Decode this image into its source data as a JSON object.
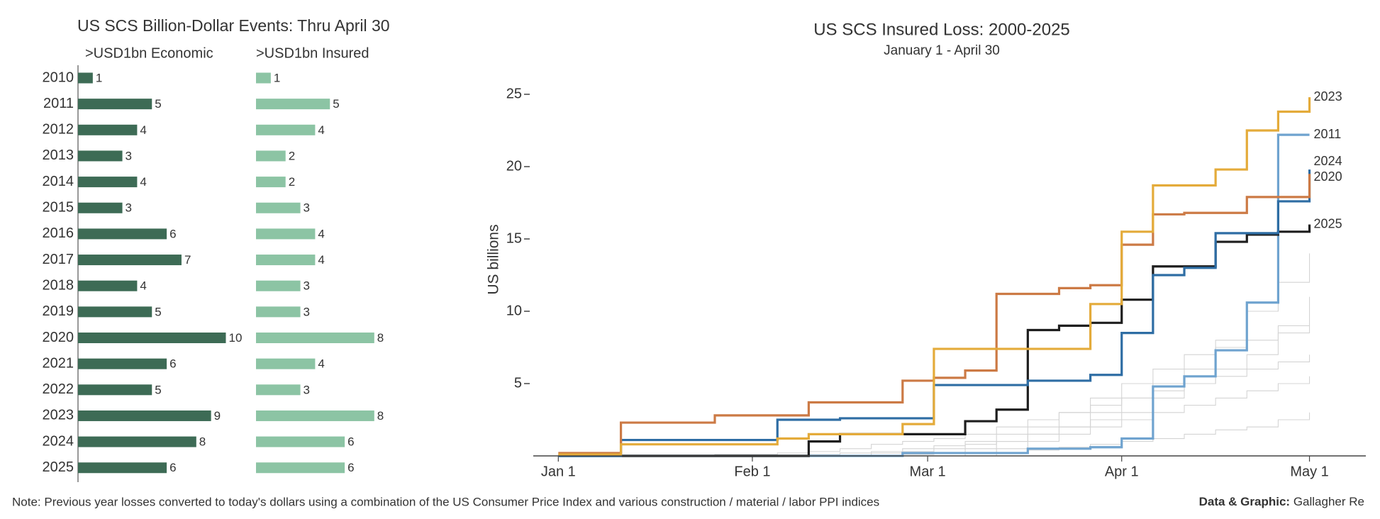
{
  "chart_data": [
    {
      "type": "hbar",
      "title": "US SCS Billion-Dollar Events: Thru April 30",
      "categories": [
        "2010",
        "2011",
        "2012",
        "2013",
        "2014",
        "2015",
        "2016",
        "2017",
        "2018",
        "2019",
        "2020",
        "2021",
        "2022",
        "2023",
        "2024",
        "2025"
      ],
      "xlim": [
        0,
        10
      ],
      "series": [
        {
          "name": ">USD1bn Economic",
          "color": "#3d6b55",
          "values": [
            1,
            5,
            4,
            3,
            4,
            3,
            6,
            7,
            4,
            5,
            10,
            6,
            5,
            9,
            8,
            6
          ]
        },
        {
          "name": ">USD1bn Insured",
          "color": "#8cc4a4",
          "values": [
            1,
            5,
            4,
            2,
            2,
            3,
            4,
            4,
            3,
            3,
            8,
            4,
            3,
            8,
            6,
            6
          ]
        }
      ]
    },
    {
      "type": "step",
      "title": "US SCS Insured Loss: 2000-2025",
      "subtitle": "January 1 - April 30",
      "y_label": "US billions",
      "x": [
        1,
        6,
        11,
        16,
        21,
        26,
        31,
        36,
        41,
        46,
        51,
        56,
        61,
        66,
        71,
        76,
        81,
        86,
        91,
        96,
        101,
        106,
        111,
        116,
        121
      ],
      "xlim": [
        -3,
        130
      ],
      "xticks": [
        {
          "value": 1,
          "label": "Jan 1"
        },
        {
          "value": 32,
          "label": "Feb 1"
        },
        {
          "value": 60,
          "label": "Mar 1"
        },
        {
          "value": 91,
          "label": "Apr 1"
        },
        {
          "value": 121,
          "label": "May 1"
        }
      ],
      "ylim": [
        0,
        26
      ],
      "yticks": [
        5,
        10,
        15,
        20,
        25
      ],
      "series": [
        {
          "color": "#d4d4d4",
          "values": [
            0,
            0,
            0,
            0,
            0,
            0,
            0,
            0,
            0,
            0,
            0.2,
            0.3,
            0.5,
            0.8,
            1,
            1.5,
            2,
            3,
            4,
            5,
            6,
            8,
            10,
            12,
            14
          ]
        },
        {
          "color": "#d4d4d4",
          "values": [
            0,
            0,
            0,
            0,
            0,
            0.1,
            0.1,
            0.2,
            0.3,
            0.5,
            0.8,
            1,
            1.2,
            1.5,
            2,
            2.5,
            3,
            4,
            5,
            6,
            7,
            7.5,
            8,
            8.5,
            9
          ]
        },
        {
          "color": "#d4d4d4",
          "values": [
            0,
            0,
            0,
            0,
            0,
            0,
            0,
            0,
            0.1,
            0.2,
            0.3,
            0.5,
            0.7,
            1,
            1.5,
            2,
            3,
            3.5,
            4,
            4.5,
            5,
            5.5,
            6,
            6.5,
            7
          ]
        },
        {
          "color": "#d4d4d4",
          "values": [
            0,
            0,
            0,
            0,
            0,
            0,
            0,
            0,
            0,
            0,
            0,
            0.1,
            0.2,
            0.5,
            1,
            1.5,
            2,
            2.5,
            3,
            4,
            5,
            6,
            7,
            9,
            11
          ]
        },
        {
          "color": "#d4d4d4",
          "values": [
            0,
            0,
            0,
            0,
            0,
            0,
            0,
            0,
            0,
            0,
            0,
            0,
            0,
            0.2,
            0.5,
            1,
            1.5,
            2,
            2.5,
            3,
            3.5,
            4,
            4.5,
            5,
            5.5
          ]
        },
        {
          "color": "#d4d4d4",
          "values": [
            0,
            0,
            0,
            0,
            0,
            0,
            0,
            0,
            0,
            0,
            0,
            0,
            0,
            0,
            0.2,
            0.4,
            0.6,
            0.8,
            1,
            1.2,
            1.5,
            1.8,
            2,
            2.5,
            3
          ]
        },
        {
          "name": "2011",
          "color": "#6fa3cf",
          "values": [
            0,
            0,
            0,
            0,
            0,
            0,
            0,
            0,
            0,
            0,
            0,
            0.2,
            0.2,
            0.2,
            0.2,
            0.5,
            0.5,
            0.6,
            1.2,
            4.8,
            5.5,
            7.3,
            10.6,
            22.2,
            22.2
          ]
        },
        {
          "name": "2025",
          "color": "#1e1e1e",
          "values": [
            0,
            0,
            0,
            0,
            0,
            0,
            0,
            0,
            1.0,
            1.5,
            1.5,
            1.5,
            1.5,
            2.4,
            3.2,
            8.7,
            9.0,
            9.2,
            10.8,
            13.1,
            13.1,
            14.8,
            15.3,
            15.5,
            16.0
          ]
        },
        {
          "name": "2024",
          "color": "#2e6da4",
          "values": [
            0,
            0,
            1.1,
            1.1,
            1.1,
            1.1,
            1.1,
            2.5,
            2.5,
            2.6,
            2.6,
            2.6,
            4.9,
            4.9,
            4.9,
            5.2,
            5.2,
            5.6,
            8.5,
            12.5,
            13,
            15.4,
            15.4,
            17.6,
            19.8
          ]
        },
        {
          "name": "2020",
          "color": "#cc7a45",
          "values": [
            0.2,
            0.2,
            2.3,
            2.3,
            2.3,
            2.8,
            2.8,
            2.8,
            3.7,
            3.7,
            3.7,
            5.2,
            5.4,
            5.9,
            11.2,
            11.2,
            11.6,
            11.8,
            14.6,
            16.7,
            16.8,
            16.8,
            17.9,
            17.9,
            19.5
          ]
        },
        {
          "name": "2023",
          "color": "#e4ab3a",
          "values": [
            0.1,
            0.1,
            0.8,
            0.8,
            0.8,
            0.8,
            0.8,
            1.2,
            1.5,
            1.5,
            1.5,
            2.2,
            7.4,
            7.4,
            7.4,
            7.4,
            7.4,
            10.5,
            15.5,
            18.7,
            18.7,
            19.8,
            22.5,
            23.8,
            24.8
          ]
        }
      ]
    }
  ],
  "note": "Note: Previous year losses converted to today's dollars using a combination of the US Consumer Price Index and various construction / material / labor PPI indices",
  "source": {
    "label": "Data & Graphic:",
    "name": "Gallagher Re"
  }
}
